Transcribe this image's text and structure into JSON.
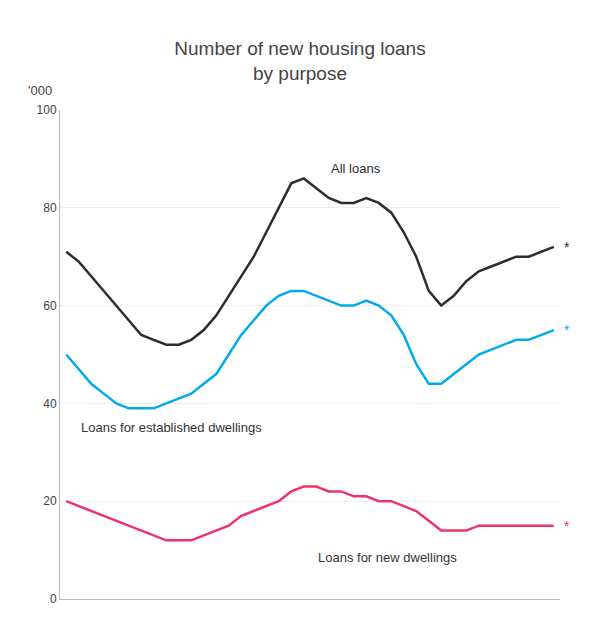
{
  "chart_data": {
    "type": "line",
    "title": "Number of new housing loans\nby purpose",
    "ylabel": "'000",
    "categories": [
      null,
      null,
      null,
      null,
      null,
      null,
      null,
      null,
      null,
      null,
      null,
      null,
      null,
      null,
      null,
      null,
      null,
      null,
      null,
      null,
      null,
      null,
      null,
      null,
      null,
      null,
      null,
      null,
      null,
      null,
      null,
      null,
      null,
      null,
      null,
      null,
      null,
      null,
      null,
      null
    ],
    "series": [
      {
        "name": "All loans",
        "color": "#2d2d2d",
        "values": [
          71,
          69,
          66,
          63,
          60,
          57,
          54,
          53,
          52,
          52,
          53,
          55,
          58,
          62,
          66,
          70,
          75,
          80,
          85,
          86,
          84,
          82,
          81,
          81,
          82,
          81,
          79,
          75,
          70,
          63,
          60,
          62,
          65,
          67,
          68,
          69,
          70,
          70,
          71,
          72
        ]
      },
      {
        "name": "Loans for established dwellings",
        "color": "#00aaee",
        "values": [
          50,
          47,
          44,
          42,
          40,
          39,
          39,
          39,
          40,
          41,
          42,
          44,
          46,
          50,
          54,
          57,
          60,
          62,
          63,
          63,
          62,
          61,
          60,
          60,
          61,
          60,
          58,
          54,
          48,
          44,
          44,
          46,
          48,
          50,
          51,
          52,
          53,
          53,
          54,
          55
        ]
      },
      {
        "name": "Loans for new dwellings",
        "color": "#ee3366",
        "values": [
          20,
          19,
          18,
          17,
          16,
          15,
          14,
          13,
          12,
          12,
          12,
          13,
          14,
          15,
          17,
          18,
          19,
          20,
          22,
          23,
          23,
          22,
          22,
          21,
          21,
          20,
          20,
          19,
          18,
          16,
          14,
          14,
          14,
          15,
          15,
          15,
          15,
          15,
          15,
          15
        ]
      }
    ],
    "annotations": [
      {
        "text": "All loans",
        "x": 21,
        "y": 88,
        "color": "#2d2d2d"
      },
      {
        "text": "Loans for established dwellings",
        "x": 1,
        "y": 35,
        "color": "#333333"
      },
      {
        "text": "Loans for new dwellings",
        "x": 20,
        "y": 8.5,
        "color": "#333333"
      },
      {
        "text": "*",
        "x": 39,
        "y": 72,
        "color": "#2d2d2d",
        "marker": "end"
      },
      {
        "text": "*",
        "x": 39,
        "y": 55,
        "color": "#00aaee",
        "marker": "end"
      },
      {
        "text": "*",
        "x": 39,
        "y": 15,
        "color": "#ee3366",
        "marker": "end"
      }
    ],
    "ylim": [
      0,
      100
    ],
    "yticks": [
      0,
      20,
      40,
      60,
      80,
      100
    ],
    "grid": true,
    "tick_labels": "y"
  }
}
